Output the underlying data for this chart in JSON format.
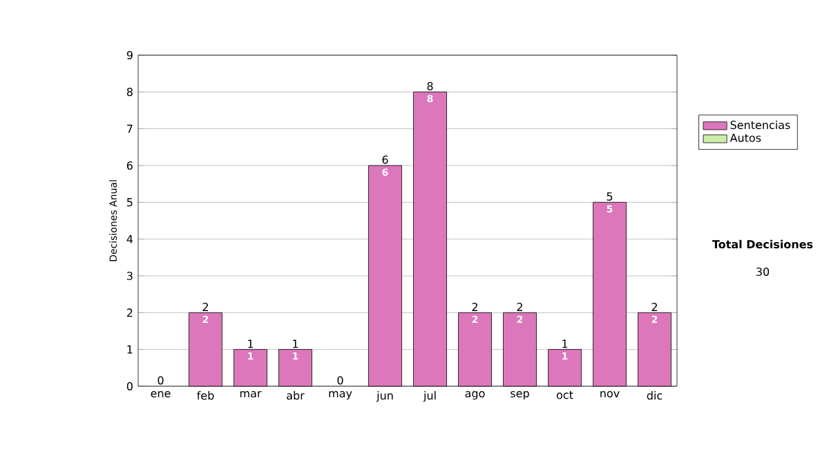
{
  "chart_data": {
    "type": "bar",
    "ylabel": "Decisiones Anual",
    "categories": [
      "ene",
      "feb",
      "mar",
      "abr",
      "may",
      "jun",
      "jul",
      "ago",
      "sep",
      "oct",
      "nov",
      "dic"
    ],
    "series": [
      {
        "name": "Sentencias",
        "color": "#dd77bb",
        "values": [
          0,
          2,
          1,
          1,
          0,
          6,
          8,
          2,
          2,
          1,
          5,
          2
        ],
        "value_labels": [
          null,
          "2",
          "1",
          "1",
          null,
          "6",
          "8",
          "2",
          "2",
          "1",
          "5",
          "2"
        ]
      },
      {
        "name": "Autos",
        "color": "#cceeaa",
        "values": [
          null,
          null,
          null,
          null,
          null,
          null,
          null,
          null,
          null,
          null,
          null,
          null
        ]
      }
    ],
    "stacked": true,
    "totals": [
      "0",
      "2",
      "1",
      "1",
      "0",
      "6",
      "8",
      "2",
      "2",
      "1",
      "5",
      "2"
    ],
    "ylim": [
      0,
      9
    ],
    "yticks": [
      0,
      1,
      2,
      3,
      4,
      5,
      6,
      7,
      8,
      9
    ],
    "grid": "y",
    "legend": "right",
    "annotations": [
      "Total Decisiones",
      "30"
    ]
  }
}
